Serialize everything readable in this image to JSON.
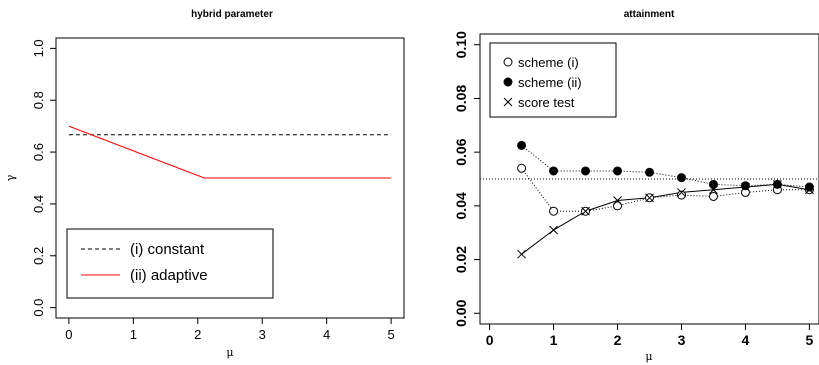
{
  "chart_data": [
    {
      "type": "line",
      "title": "hybrid parameter",
      "xlabel": "μ",
      "ylabel": "γ",
      "xlim": [
        -0.2,
        5.2
      ],
      "ylim": [
        -0.04,
        1.04
      ],
      "xticks": [
        "0",
        "1",
        "2",
        "3",
        "4",
        "5"
      ],
      "yticks": [
        "0.0",
        "0.2",
        "0.4",
        "0.6",
        "0.8",
        "1.0"
      ],
      "series": [
        {
          "name": "(i) constant",
          "color": "#000000",
          "dash": "dashed",
          "x": [
            0,
            5
          ],
          "y": [
            0.667,
            0.667
          ]
        },
        {
          "name": "(ii) adaptive",
          "color": "#ff0000",
          "dash": "solid",
          "x": [
            0,
            2.1,
            5
          ],
          "y": [
            0.7,
            0.5,
            0.5
          ]
        }
      ],
      "legend": {
        "position": "bottom-left"
      }
    },
    {
      "type": "scatter",
      "title": "attainment",
      "xlabel": "μ",
      "ylabel": "",
      "xlim": [
        -0.15,
        5.15
      ],
      "ylim": [
        -0.004,
        0.104
      ],
      "xticks": [
        "0",
        "1",
        "2",
        "3",
        "4",
        "5"
      ],
      "yticks": [
        "0.00",
        "0.02",
        "0.04",
        "0.06",
        "0.08",
        "0.10"
      ],
      "reference_line": {
        "y": 0.05,
        "style": "dotted"
      },
      "x": [
        0.5,
        1.0,
        1.5,
        2.0,
        2.5,
        3.0,
        3.5,
        4.0,
        4.5,
        5.0
      ],
      "series": [
        {
          "name": "scheme (i)",
          "marker": "open-circle",
          "line": "dotted",
          "y": [
            0.054,
            0.038,
            0.038,
            0.04,
            0.043,
            0.044,
            0.0435,
            0.045,
            0.046,
            0.046
          ]
        },
        {
          "name": "scheme (ii)",
          "marker": "filled-circle",
          "line": "dotted",
          "y": [
            0.0625,
            0.053,
            0.053,
            0.053,
            0.0525,
            0.0505,
            0.048,
            0.0475,
            0.048,
            0.047
          ]
        },
        {
          "name": "score test",
          "marker": "cross",
          "line": "solid",
          "y": [
            0.022,
            0.031,
            0.038,
            0.042,
            0.043,
            0.045,
            0.046,
            0.047,
            0.048,
            0.046
          ]
        }
      ],
      "legend": {
        "position": "top-left"
      }
    }
  ]
}
